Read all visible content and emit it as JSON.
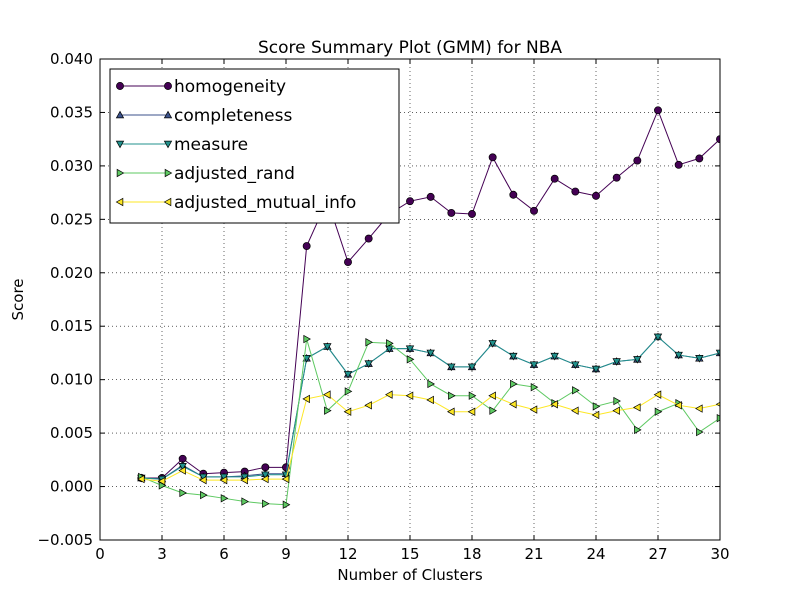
{
  "chart_data": {
    "type": "line",
    "title": "Score Summary Plot (GMM) for NBA",
    "xlabel": "Number of Clusters",
    "ylabel": "Score",
    "xlim": [
      0,
      30
    ],
    "ylim": [
      -0.005,
      0.04
    ],
    "x_ticks": [
      "0",
      "3",
      "6",
      "9",
      "12",
      "15",
      "18",
      "21",
      "24",
      "27",
      "30"
    ],
    "y_ticks": [
      "−0.005",
      "0.000",
      "0.005",
      "0.010",
      "0.015",
      "0.020",
      "0.025",
      "0.030",
      "0.035",
      "0.040"
    ],
    "grid": true,
    "legend_position": "top-left",
    "x": [
      2,
      3,
      4,
      5,
      6,
      7,
      8,
      9,
      10,
      11,
      12,
      13,
      14,
      15,
      16,
      17,
      18,
      19,
      20,
      21,
      22,
      23,
      24,
      25,
      26,
      27,
      28,
      29,
      30
    ],
    "series": [
      {
        "name": "homogeneity",
        "color": "#440154",
        "marker": "circle",
        "values": [
          0.0008,
          0.0008,
          0.0026,
          0.0012,
          0.0013,
          0.0014,
          0.0018,
          0.0018,
          0.0225,
          0.0268,
          0.021,
          0.0232,
          0.0255,
          0.0267,
          0.0271,
          0.0256,
          0.0255,
          0.0308,
          0.0273,
          0.0258,
          0.0288,
          0.0276,
          0.0272,
          0.0289,
          0.0305,
          0.0352,
          0.0301,
          0.0307,
          0.0325
        ]
      },
      {
        "name": "completeness",
        "color": "#3b528b",
        "marker": "triangle-up",
        "values": [
          0.0008,
          0.0007,
          0.002,
          0.0009,
          0.0009,
          0.001,
          0.0012,
          0.0012,
          0.012,
          0.0131,
          0.0105,
          0.0115,
          0.0129,
          0.0129,
          0.0125,
          0.0112,
          0.0112,
          0.0134,
          0.0122,
          0.0114,
          0.0122,
          0.0114,
          0.011,
          0.0117,
          0.0119,
          0.014,
          0.0123,
          0.012,
          0.0125
        ]
      },
      {
        "name": "measure",
        "color": "#21918c",
        "marker": "triangle-down",
        "values": [
          0.0008,
          0.0007,
          0.0019,
          0.0009,
          0.0009,
          0.0009,
          0.0011,
          0.0011,
          0.012,
          0.0131,
          0.0105,
          0.0115,
          0.0129,
          0.0129,
          0.0125,
          0.0112,
          0.0112,
          0.0134,
          0.0122,
          0.0114,
          0.0122,
          0.0114,
          0.011,
          0.0117,
          0.0119,
          0.014,
          0.0123,
          0.012,
          0.0125
        ]
      },
      {
        "name": "adjusted_rand",
        "color": "#5ec962",
        "marker": "triangle-right",
        "values": [
          0.0009,
          0.0001,
          -0.0006,
          -0.0008,
          -0.0011,
          -0.0014,
          -0.0016,
          -0.0017,
          0.0138,
          0.0071,
          0.0089,
          0.0135,
          0.0134,
          0.0119,
          0.0096,
          0.0085,
          0.0085,
          0.0071,
          0.0096,
          0.0093,
          0.0078,
          0.009,
          0.0075,
          0.008,
          0.0053,
          0.007,
          0.0078,
          0.0051,
          0.0064
        ]
      },
      {
        "name": "adjusted_mutual_info",
        "color": "#fde725",
        "marker": "triangle-left",
        "values": [
          0.0007,
          0.0005,
          0.0015,
          0.0006,
          0.0006,
          0.0006,
          0.0007,
          0.0007,
          0.0082,
          0.0086,
          0.007,
          0.0076,
          0.0086,
          0.0085,
          0.0081,
          0.007,
          0.007,
          0.0085,
          0.0077,
          0.0072,
          0.0077,
          0.0071,
          0.0067,
          0.0071,
          0.0074,
          0.0086,
          0.0076,
          0.0073,
          0.0077
        ]
      }
    ]
  }
}
